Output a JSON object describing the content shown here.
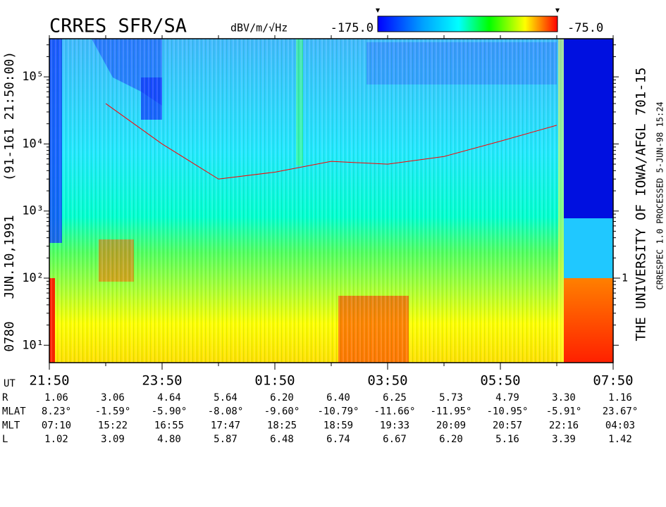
{
  "chart_data": {
    "type": "spectrogram",
    "title": "CRRES SFR/SA",
    "colorbar": {
      "label": "dBV/m/√Hz",
      "zlim": [
        -175,
        -75
      ],
      "ticks": [
        {
          "value": -175,
          "label": "-175.0"
        },
        {
          "value": -75,
          "label": "-75.0"
        }
      ]
    },
    "x_label": "UT",
    "categories": [
      "21:50",
      null,
      "23:50",
      null,
      "01:50",
      null,
      "03:50",
      null,
      "05:50",
      null,
      "07:50"
    ],
    "log_y": true,
    "ylim": [
      5.5,
      370000
    ],
    "yticks": [
      {
        "value": 10,
        "label": "10¹"
      },
      {
        "value": 100,
        "label": "10²"
      },
      {
        "value": 1000,
        "label": "10³"
      },
      {
        "value": 10000,
        "label": "10⁴"
      },
      {
        "value": 100000,
        "label": "10⁵"
      }
    ],
    "y2lim": [
      5.5,
      370000
    ],
    "y2ticks": [
      {
        "value": 100,
        "label": "1"
      }
    ],
    "trace": {
      "color": "#ff0000",
      "values": [
        null,
        40000,
        10000,
        3000,
        3800,
        5500,
        5000,
        6500,
        11000,
        19000,
        null
      ]
    },
    "ephemeris": [
      {
        "label": "R",
        "values": [
          "1.06",
          "3.06",
          "4.64",
          "5.64",
          "6.20",
          "6.40",
          "6.25",
          "5.73",
          "4.79",
          "3.30",
          "1.16"
        ]
      },
      {
        "label": "MLAT",
        "values": [
          "8.23°",
          "-1.59°",
          "-5.90°",
          "-8.08°",
          "-9.60°",
          "-10.79°",
          "-11.66°",
          "-11.95°",
          "-10.95°",
          "-5.91°",
          "23.67°"
        ]
      },
      {
        "label": "MLT",
        "values": [
          "07:10",
          "15:22",
          "16:55",
          "17:47",
          "18:25",
          "18:59",
          "19:33",
          "20:09",
          "20:57",
          "22:16",
          "04:03"
        ]
      },
      {
        "label": "L",
        "values": [
          "1.02",
          "3.09",
          "4.80",
          "5.87",
          "6.48",
          "6.74",
          "6.67",
          "6.20",
          "5.16",
          "3.39",
          "1.42"
        ]
      }
    ],
    "side_left": [
      "(91-161 21:50:00)",
      "JUN.10,1991",
      "0780"
    ],
    "side_right": [
      "THE UNIVERSITY OF IOWA/AFGL 701-15",
      "CRRESPEC 1.0  PROCESSED  5-JUN-98  15:24"
    ]
  }
}
